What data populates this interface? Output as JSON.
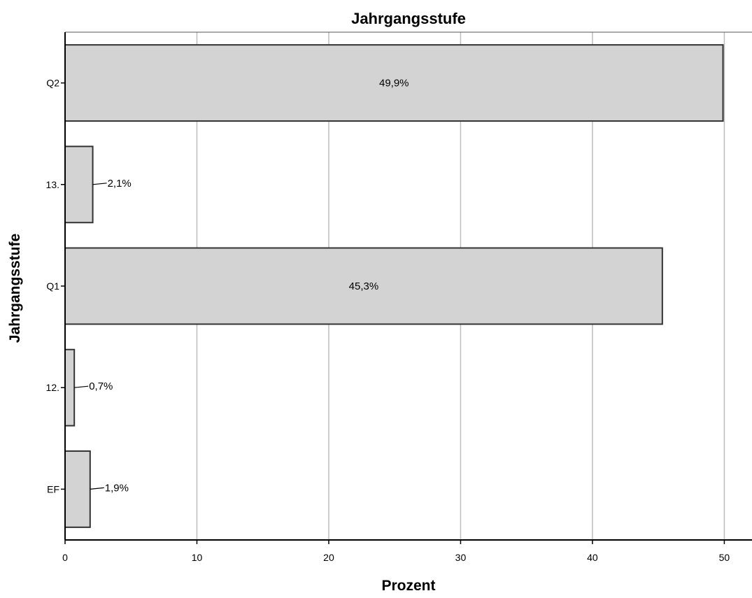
{
  "chart_data": {
    "type": "bar",
    "orientation": "horizontal",
    "title": "Jahrgangsstufe",
    "xlabel": "Prozent",
    "ylabel": "Jahrgangsstufe",
    "categories": [
      "Q2",
      "13.",
      "Q1",
      "12.",
      "EF"
    ],
    "values": [
      49.9,
      2.1,
      45.3,
      0.7,
      1.9
    ],
    "data_labels": [
      "49,9%",
      "2,1%",
      "45,3%",
      "0,7%",
      "1,9%"
    ],
    "xlim": [
      0,
      52.1
    ],
    "xticks": [
      0,
      10,
      20,
      30,
      40,
      50
    ],
    "xtick_labels": [
      "0",
      "10",
      "20",
      "30",
      "40",
      "50"
    ],
    "grid": "vertical",
    "legend": "none",
    "colors": {
      "bar_fill": "#d3d3d3",
      "bar_stroke": "#333333",
      "grid": "#bdbdbd",
      "axis": "#000000"
    }
  }
}
